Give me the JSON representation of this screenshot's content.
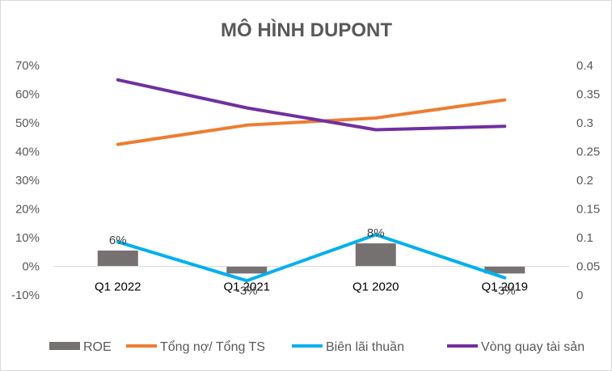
{
  "chart_data": {
    "type": "bar",
    "title": "MÔ HÌNH DUPONT",
    "categories": [
      "Q1 2022",
      "Q1 2021",
      "Q1 2020",
      "Q1 2019"
    ],
    "left_axis": {
      "ylim": [
        -0.1,
        0.7
      ],
      "ticks": [
        -0.1,
        0,
        0.1,
        0.2,
        0.3,
        0.4,
        0.5,
        0.6,
        0.7
      ],
      "tick_labels": [
        "-10%",
        "0%",
        "10%",
        "20%",
        "30%",
        "40%",
        "50%",
        "60%",
        "70%"
      ]
    },
    "right_axis": {
      "ylim": [
        0,
        0.4
      ],
      "ticks": [
        0,
        0.05,
        0.1,
        0.15,
        0.2,
        0.25,
        0.3,
        0.35,
        0.4
      ],
      "tick_labels": [
        "0",
        "0.05",
        "0.1",
        "0.15",
        "0.2",
        "0.25",
        "0.3",
        "0.35",
        "0.4"
      ]
    },
    "series": [
      {
        "name": "ROE",
        "kind": "bar",
        "axis": "left",
        "color": "#767171",
        "values": [
          0.055,
          -0.025,
          0.08,
          -0.025
        ],
        "data_labels": [
          "6%",
          "-3%",
          "8%",
          "-3%"
        ]
      },
      {
        "name": "Tổng nợ/ Tổng TS",
        "kind": "line",
        "axis": "left",
        "color": "#ED7D31",
        "values": [
          0.425,
          0.492,
          0.517,
          0.58
        ]
      },
      {
        "name": "Biên lãi thuần",
        "kind": "line",
        "axis": "left",
        "color": "#00B0F0",
        "values": [
          0.085,
          -0.05,
          0.11,
          -0.04
        ]
      },
      {
        "name": "Vòng quay tài sản",
        "kind": "line",
        "axis": "right",
        "color": "#7030A0",
        "values": [
          0.375,
          0.326,
          0.288,
          0.294
        ]
      }
    ],
    "grid": false,
    "legend_position": "bottom"
  }
}
